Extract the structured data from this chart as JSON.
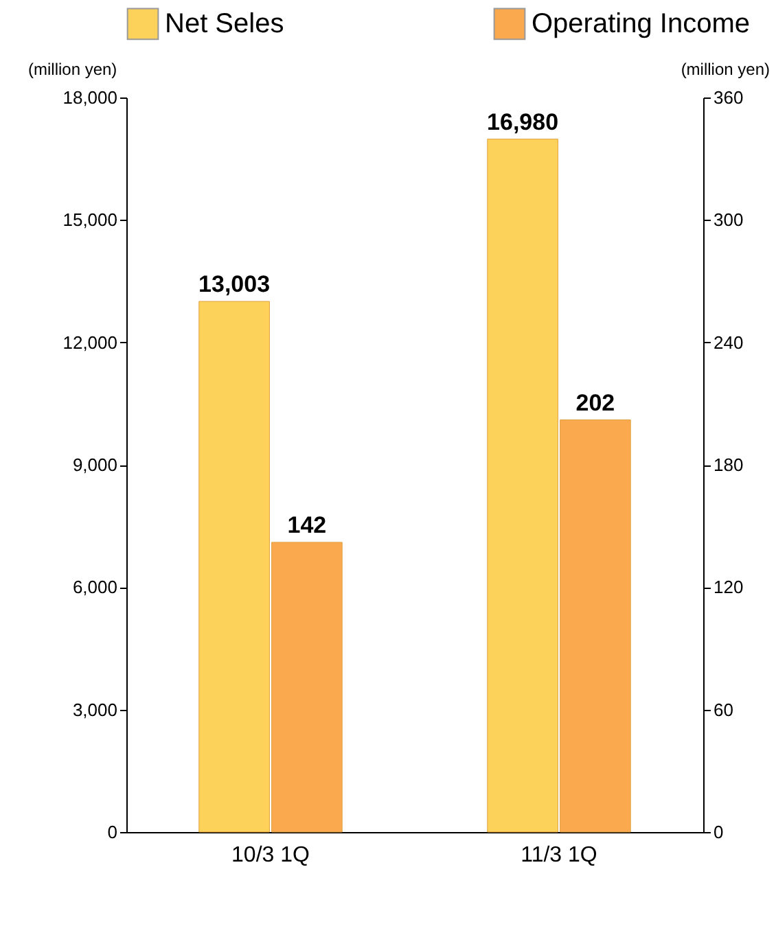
{
  "chart_data": {
    "type": "bar",
    "categories": [
      "10/3 1Q",
      "11/3 1Q"
    ],
    "series": [
      {
        "name": "Net Seles",
        "color": "#fdd25a",
        "values": [
          13003,
          16980
        ],
        "value_labels": [
          "13,003",
          "16,980"
        ]
      },
      {
        "name": "Operating Income",
        "color": "#fba94e",
        "values": [
          142,
          202
        ],
        "value_labels": [
          "142",
          "202"
        ],
        "axis": "y2"
      }
    ],
    "ylabel": "(million yen)",
    "y2label": "(million yen)",
    "ylim": [
      0,
      18000
    ],
    "yticks": [
      0,
      {
        "value": 3000,
        "label": "3,000"
      },
      {
        "value": 6000,
        "label": "6,000"
      },
      {
        "value": 9000,
        "label": "9,000"
      },
      {
        "value": 12000,
        "label": "12,000"
      },
      {
        "value": 15000,
        "label": "15,000"
      },
      {
        "value": 18000,
        "label": "18,000"
      }
    ],
    "y2lim": [
      0,
      360
    ],
    "y2ticks": [
      0,
      60,
      120,
      180,
      240,
      300,
      360
    ],
    "legend": "top",
    "grid": false
  }
}
